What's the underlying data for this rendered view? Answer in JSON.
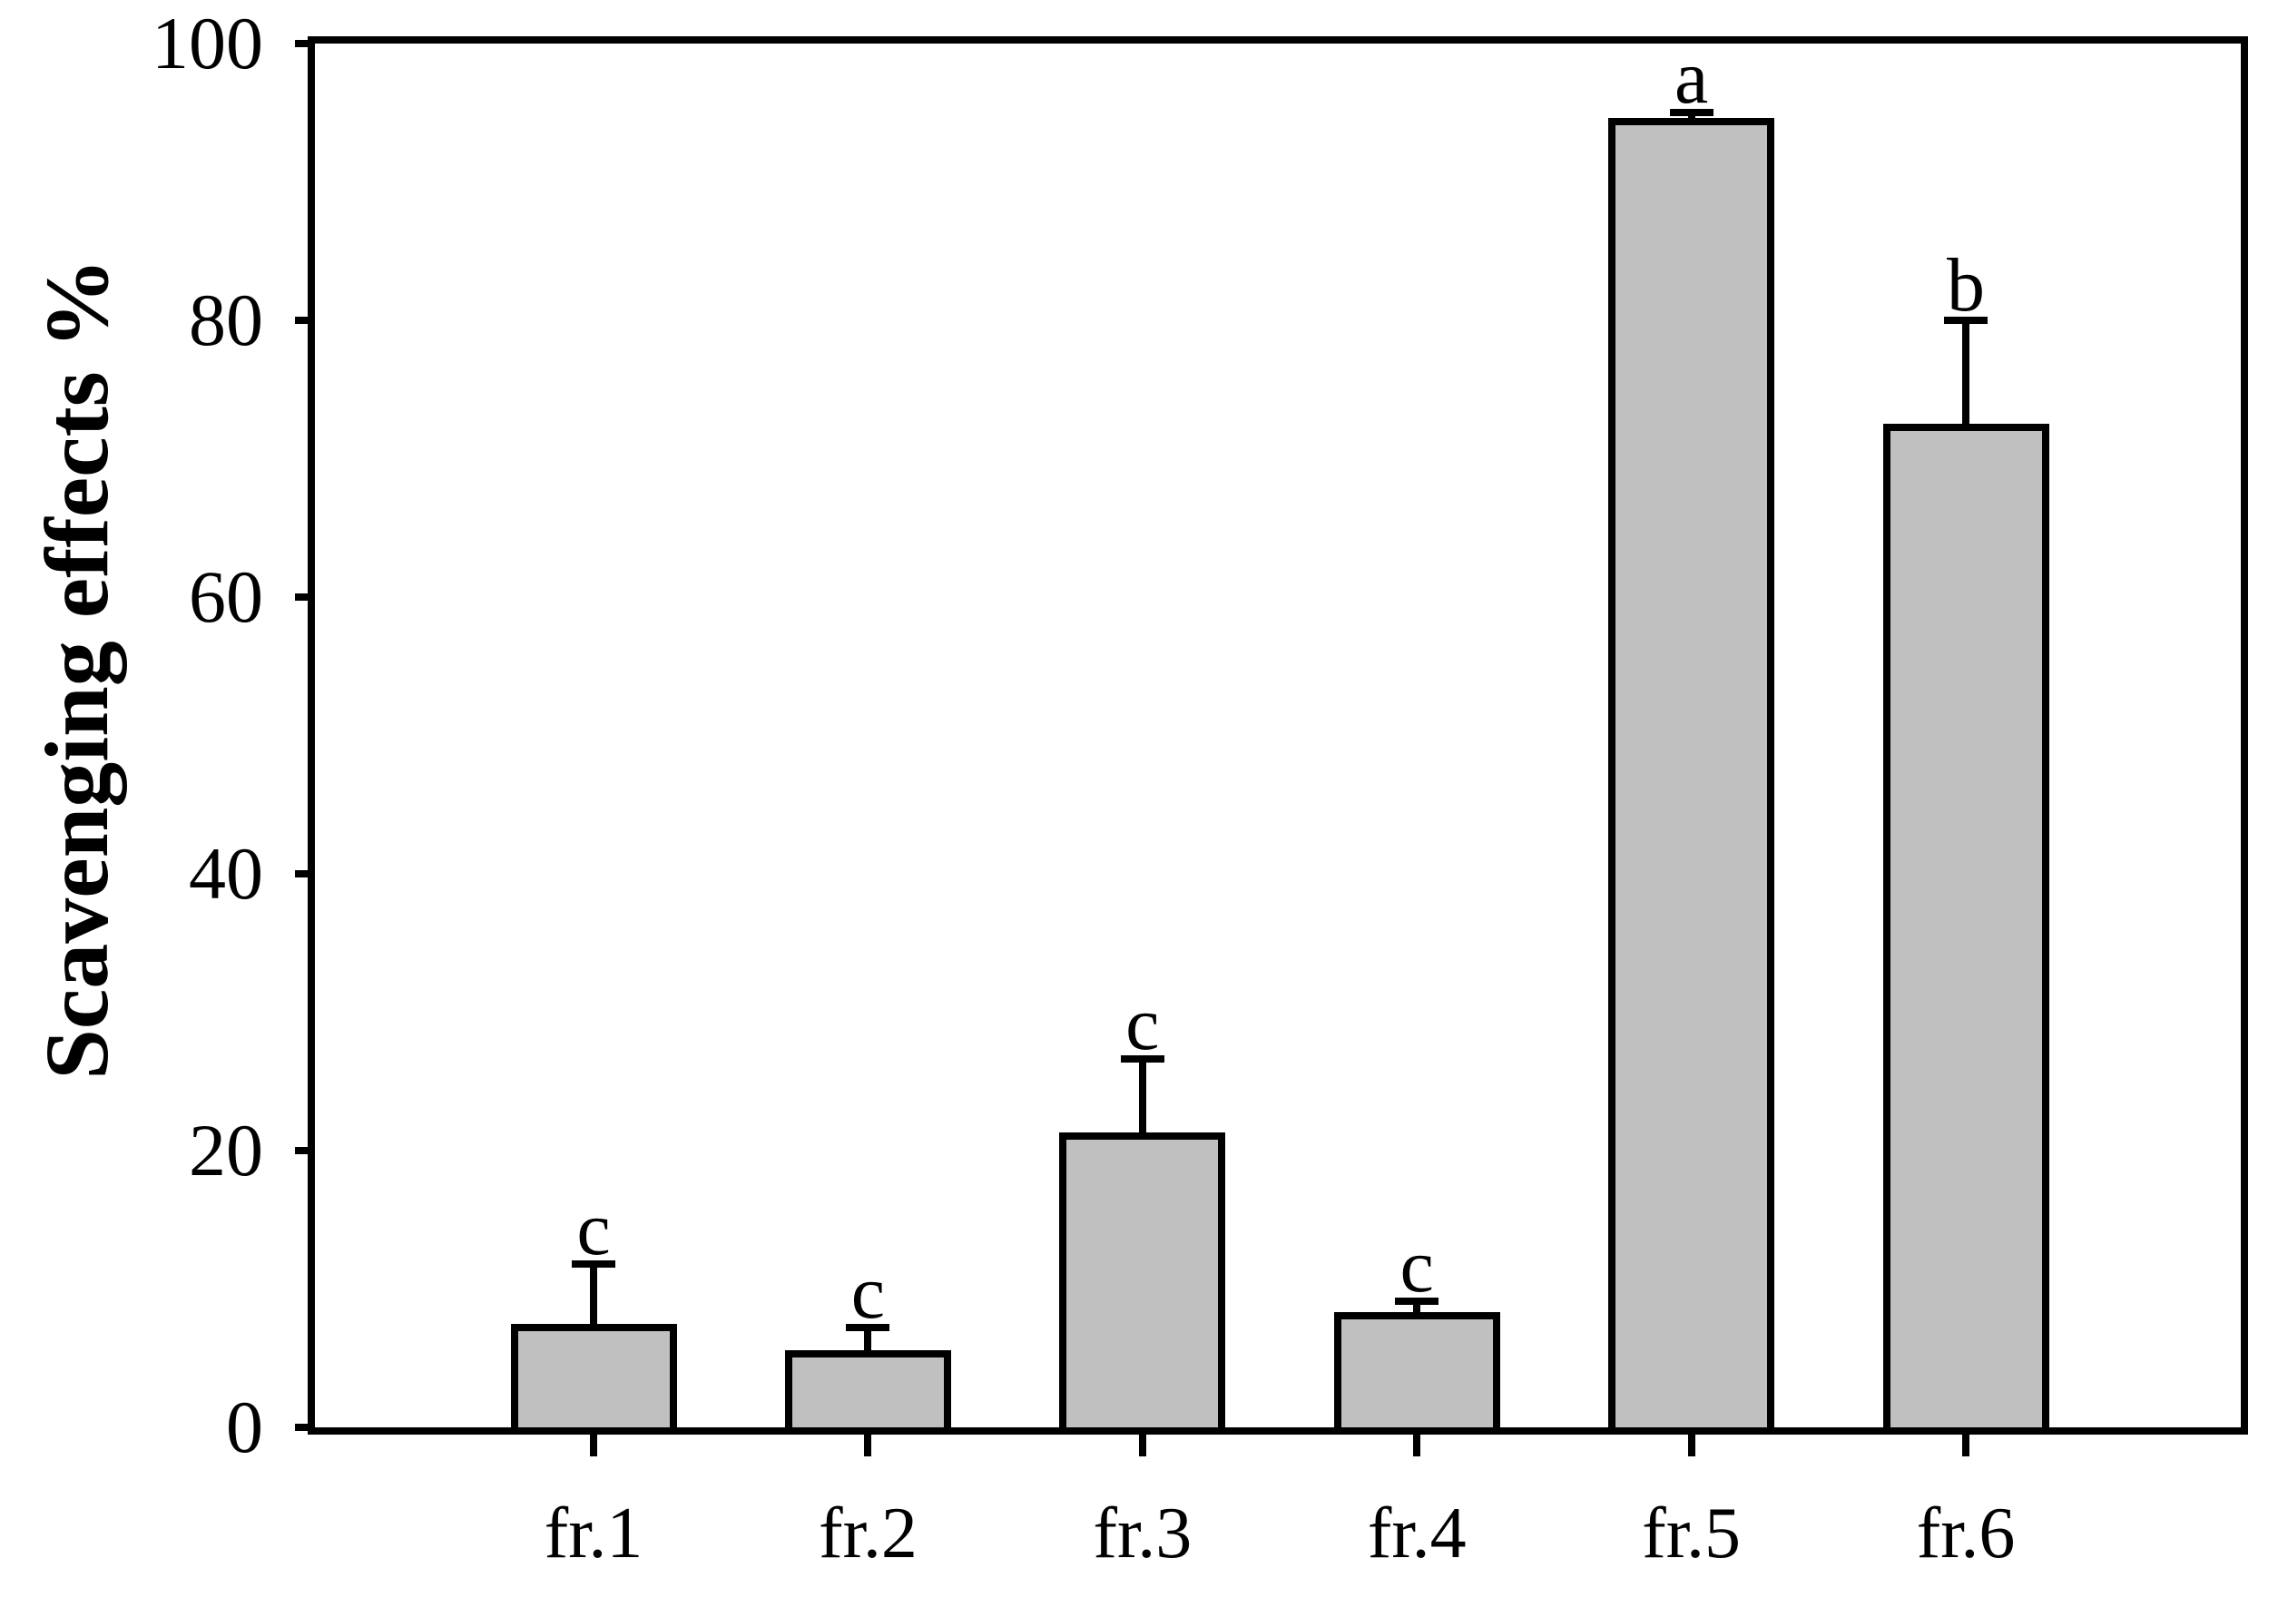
{
  "figure": {
    "background_color": "#ffffff",
    "bar_fill_color": "#c0c0c0",
    "line_color": "#000000"
  },
  "chart_data": {
    "type": "bar",
    "title": "",
    "xlabel": "",
    "ylabel": "Scavenging effects %",
    "categories": [
      "fr.1",
      "fr.2",
      "fr.3",
      "fr.4",
      "fr.5",
      "fr.6"
    ],
    "values": [
      7.5,
      5.6,
      21.3,
      8.3,
      94.6,
      72.5
    ],
    "error_plus": [
      4.3,
      1.6,
      5.3,
      0.8,
      0.4,
      7.5
    ],
    "error_bar_style": "upper whisker with cap",
    "significance_letters": [
      "c",
      "c",
      "c",
      "c",
      "a",
      "b"
    ],
    "ylim": [
      0,
      100
    ],
    "yticks": [
      0,
      20,
      40,
      60,
      80,
      100
    ],
    "ytick_labels": [
      "0",
      "20",
      "40",
      "60",
      "80",
      "100"
    ],
    "grid": false,
    "legend": null
  }
}
